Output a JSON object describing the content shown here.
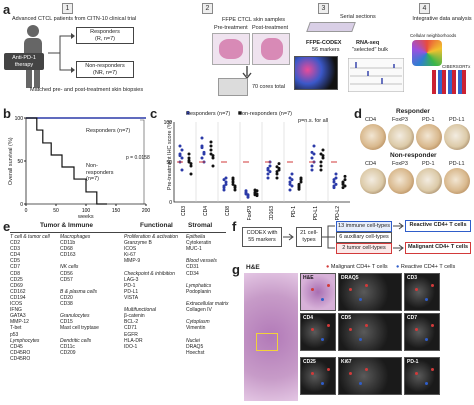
{
  "panels": {
    "a": "a",
    "b": "b",
    "c": "c",
    "d": "d",
    "e": "e",
    "f": "f",
    "g": "g"
  },
  "a": {
    "steps": [
      "1",
      "2",
      "3",
      "4"
    ],
    "cohort": "Advanced CTCL patients from CITN-10 clinical trial",
    "therapy": "Anti-PD-1 therapy",
    "responders": "Responders",
    "responders_n": "(R, n=7)",
    "nonresponders": "Non-responders",
    "nonresponders_n": "(NR, n=7)",
    "matched": "Matched pre- and post-treatment skin biopsies",
    "ffpe": "FFPE CTCL skin samples",
    "pre": "Pre-treatment",
    "post": "Post-treatment",
    "cores": "70 cores total",
    "serial": "Serial sections",
    "codex": "FFPE-CODEX",
    "markers": "56 markers",
    "rnaseq": "RNA-seq",
    "bulk": "\"selected\" bulk",
    "integrative": "Integrative data analysis",
    "neigh": "Cellular neighborhoods",
    "cibersort": "CIBERSORTx"
  },
  "b": {
    "ylabel": "Overall survival (%)",
    "xlabel": "weeks",
    "resp_label": "Responders (n=7)",
    "nonresp_label": "Non-responders (n=7)",
    "pval": "p = 0.0158",
    "yticks": [
      "100",
      "50",
      "0"
    ],
    "xticks": [
      "0",
      "50",
      "100",
      "150",
      "200"
    ]
  },
  "c": {
    "ylabel": "Pre-treatment IHC score (%)",
    "legend_r": "Responders (n=7)",
    "legend_nr": "Non-responders (n=7)",
    "pns": "p=n.s. for all",
    "markers": [
      "CD3",
      "CD4",
      "CD8",
      "FoxP3",
      "CD163",
      "PD-1",
      "PD-L1",
      "PD-L2"
    ],
    "yticks": [
      "100",
      "50",
      "0"
    ]
  },
  "d": {
    "responder": "Responder",
    "nonresponder": "Non-responder",
    "markers": [
      "CD4",
      "FoxP3",
      "PD-1",
      "PD-L1"
    ]
  },
  "e": {
    "headers": [
      "Tumor & Immune",
      "Functional",
      "Stromal"
    ],
    "col1": [
      [
        "T cell & tumor cell",
        "it"
      ],
      [
        "CD2",
        ""
      ],
      [
        "CD3",
        ""
      ],
      [
        "CD4",
        ""
      ],
      [
        "CD5",
        ""
      ],
      [
        "CD7",
        ""
      ],
      [
        "CD8",
        ""
      ],
      [
        "CD25",
        ""
      ],
      [
        "CD69",
        ""
      ],
      [
        "CD162",
        ""
      ],
      [
        "CD194",
        ""
      ],
      [
        "ICOS",
        ""
      ],
      [
        "IFNG",
        ""
      ],
      [
        "GATA3",
        ""
      ],
      [
        "MMP-12",
        ""
      ],
      [
        "T-bet",
        ""
      ],
      [
        "p53",
        ""
      ],
      [
        "Lymphocytes",
        "it"
      ],
      [
        "CD45",
        ""
      ],
      [
        "CD45RO",
        ""
      ],
      [
        "CD45RO",
        ""
      ]
    ],
    "col2": [
      [
        "Macrophages",
        "it"
      ],
      [
        "CD11b",
        ""
      ],
      [
        "CD68",
        ""
      ],
      [
        "CD163",
        ""
      ],
      [
        "",
        ""
      ],
      [
        "NK cells",
        "it"
      ],
      [
        "CD56",
        ""
      ],
      [
        "CD57",
        ""
      ],
      [
        "",
        ""
      ],
      [
        "B & plasma cells",
        "it"
      ],
      [
        "CD20",
        ""
      ],
      [
        "CD38",
        ""
      ],
      [
        "",
        ""
      ],
      [
        "Granulocytes",
        "it"
      ],
      [
        "CD15",
        ""
      ],
      [
        "Mast cell tryptase",
        ""
      ],
      [
        "",
        ""
      ],
      [
        "Dendritic cells",
        "it"
      ],
      [
        "CD11c",
        ""
      ],
      [
        "CD209",
        ""
      ]
    ],
    "col3": [
      [
        "Proliferation & activation",
        "it"
      ],
      [
        "Granzyme B",
        ""
      ],
      [
        "ICOS",
        ""
      ],
      [
        "Ki-67",
        ""
      ],
      [
        "MMP-9",
        ""
      ],
      [
        "",
        ""
      ],
      [
        "Checkpoint & inhibition",
        "it"
      ],
      [
        "LAG-3",
        ""
      ],
      [
        "PD-1",
        ""
      ],
      [
        "PD-L1",
        ""
      ],
      [
        "VISTA",
        ""
      ],
      [
        "",
        ""
      ],
      [
        "Multifunctional",
        "it"
      ],
      [
        "β-catenin",
        ""
      ],
      [
        "BCL-2",
        ""
      ],
      [
        "CD71",
        ""
      ],
      [
        "EGFR",
        ""
      ],
      [
        "HLA-DR",
        ""
      ],
      [
        "IDO-1",
        ""
      ]
    ],
    "col4": [
      [
        "Epithelia",
        "it"
      ],
      [
        "Cytokeratin",
        ""
      ],
      [
        "MUC-1",
        ""
      ],
      [
        "",
        ""
      ],
      [
        "Blood vessels",
        "it"
      ],
      [
        "CD31",
        ""
      ],
      [
        "CD34",
        ""
      ],
      [
        "",
        ""
      ],
      [
        "Lymphatics",
        "it"
      ],
      [
        "Podoplanin",
        ""
      ],
      [
        "",
        ""
      ],
      [
        "Extracellular matrix",
        "it"
      ],
      [
        "Collagen IV",
        ""
      ],
      [
        "",
        ""
      ],
      [
        "Cytoplasm",
        "it"
      ],
      [
        "Vimentin",
        ""
      ],
      [
        "",
        ""
      ],
      [
        "Nuclei",
        "it"
      ],
      [
        "DRAQ5",
        ""
      ],
      [
        "Hoechst",
        ""
      ]
    ]
  },
  "f": {
    "codex": "CODEX with 55 markers",
    "celltypes": "21 cell-types",
    "immune": "13 immune cell-types",
    "auxiliary": "6 auxiliary cell-types",
    "tumor": "2 tumor cell-types",
    "reactive": "Reactive CD4+ T cells",
    "malignant": "Malignant CD4+ T cells"
  },
  "g": {
    "he": "H&E",
    "legend_m": "Malignant CD4+ T cells",
    "legend_r": "Reactive CD4+ T cells",
    "tiles": [
      "H&E",
      "DRAQ5",
      "CD3",
      "CD4",
      "CD5",
      "CD7",
      "CD25",
      "Ki67",
      "PD-1"
    ]
  },
  "colors": {
    "responder": "#2b3aa8",
    "nonresponder": "#111111",
    "malignant": "#d23a3a",
    "reactive": "#2f5dc9",
    "orange": "#f29a2e"
  }
}
